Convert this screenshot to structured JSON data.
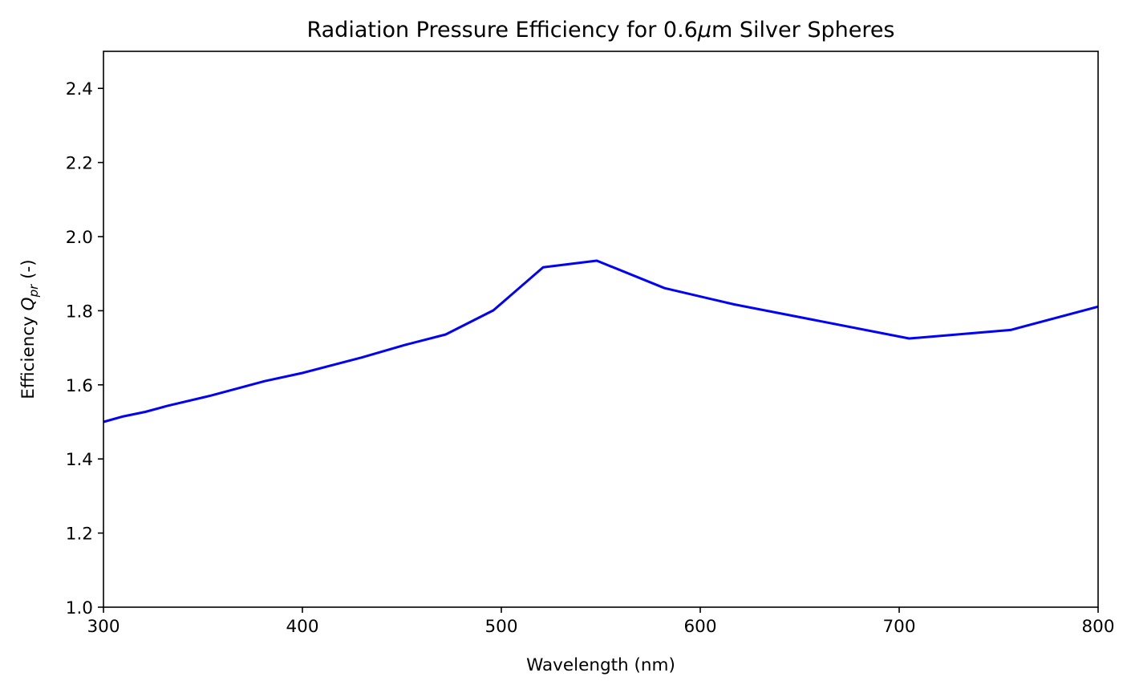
{
  "chart_data": {
    "type": "line",
    "title_parts": {
      "prefix": "Radiation Pressure Efficiency for 0.6",
      "mu": "μ",
      "suffix": "m Silver Spheres"
    },
    "xlabel": "Wavelength (nm)",
    "ylabel_parts": {
      "prefix": "Efficiency ",
      "q": "Q",
      "sub": "pr",
      "suffix": " (-)"
    },
    "xlim": [
      300,
      800
    ],
    "ylim": [
      1.0,
      2.5
    ],
    "xticks": [
      300,
      400,
      500,
      600,
      700,
      800
    ],
    "xtick_labels": [
      "300",
      "400",
      "500",
      "600",
      "700",
      "800"
    ],
    "yticks": [
      1.0,
      1.2,
      1.4,
      1.6,
      1.8,
      2.0,
      2.2,
      2.4
    ],
    "ytick_labels": [
      "1.0",
      "1.2",
      "1.4",
      "1.6",
      "1.8",
      "2.0",
      "2.2",
      "2.4"
    ],
    "grid": false,
    "series": [
      {
        "color": "#0000ff",
        "x": [
          300,
          310,
          321,
          332,
          354,
          381,
          400,
          430,
          451,
          472,
          496,
          521,
          548,
          582,
          617,
          705,
          756,
          800
        ],
        "y": [
          1.5,
          1.515,
          1.527,
          1.543,
          1.571,
          1.61,
          1.632,
          1.674,
          1.707,
          1.736,
          1.801,
          1.917,
          1.935,
          1.861,
          1.817,
          1.725,
          1.748,
          1.811
        ]
      }
    ]
  }
}
